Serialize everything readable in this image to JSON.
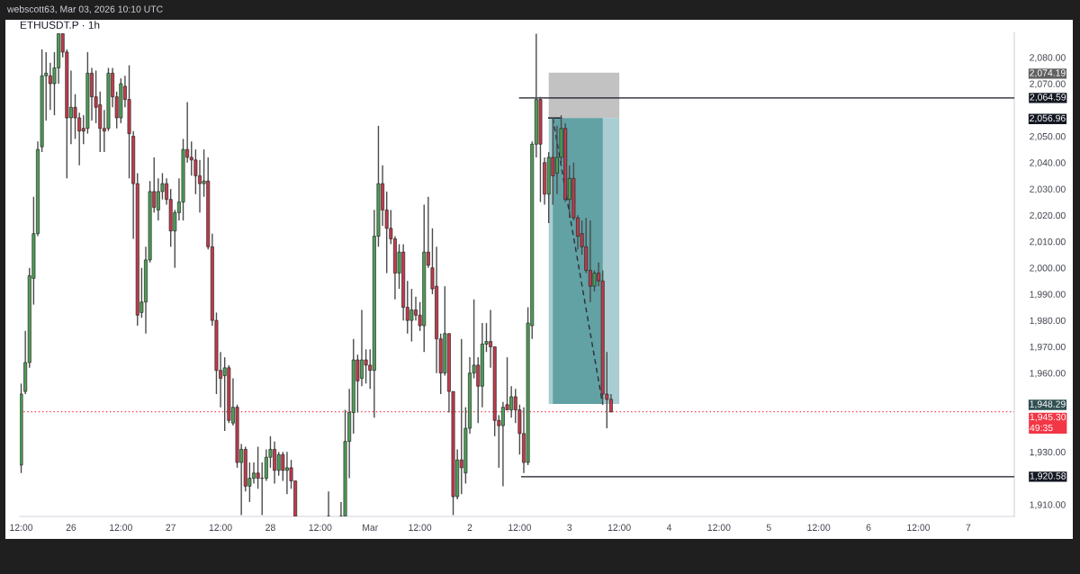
{
  "chart_data": {
    "type": "candlestick",
    "title": "ETHUSDT.P · 1h",
    "annotations": [
      "webscott63, Mar 03, 2026 10:10 UTC"
    ],
    "xlim": [
      "2026-02-25T11:40",
      "2026-03-07T11:05"
    ],
    "ylim": [
      1905.5,
      2089.5
    ],
    "xticks": [
      {
        "value": "2026-02-25T12:00",
        "label": "12:00"
      },
      {
        "value": "2026-02-26",
        "label": "26"
      },
      {
        "value": "2026-02-26T12:00",
        "label": "12:00"
      },
      {
        "value": "2026-02-27",
        "label": "27"
      },
      {
        "value": "2026-02-27T12:00",
        "label": "12:00"
      },
      {
        "value": "2026-02-28",
        "label": "28"
      },
      {
        "value": "2026-02-28T12:00",
        "label": "12:00"
      },
      {
        "value": "2026-03-01",
        "label": "Mar"
      },
      {
        "value": "2026-03-01T12:00",
        "label": "12:00"
      },
      {
        "value": "2026-03-02",
        "label": "2"
      },
      {
        "value": "2026-03-02T12:00",
        "label": "12:00"
      },
      {
        "value": "2026-03-03",
        "label": "3"
      },
      {
        "value": "2026-03-03T12:00",
        "label": "12:00"
      },
      {
        "value": "2026-03-04",
        "label": "4"
      },
      {
        "value": "2026-03-04T12:00",
        "label": "12:00"
      },
      {
        "value": "2026-03-05",
        "label": "5"
      },
      {
        "value": "2026-03-05T12:00",
        "label": "12:00"
      },
      {
        "value": "2026-03-06",
        "label": "6"
      },
      {
        "value": "2026-03-06T12:00",
        "label": "12:00"
      },
      {
        "value": "2026-03-07",
        "label": "7"
      }
    ],
    "yticks": [
      {
        "value": 2080,
        "label": "2,080.00"
      },
      {
        "value": 2074.19,
        "label": "2,074.19"
      },
      {
        "value": 2070,
        "label": "2,070.00"
      },
      {
        "value": 2056.96,
        "label": "2,056.96"
      },
      {
        "value": 2050,
        "label": "2,050.00"
      },
      {
        "value": 2040,
        "label": "2,040.00"
      },
      {
        "value": 2030,
        "label": "2,030.00"
      },
      {
        "value": 2020,
        "label": "2,020.00"
      },
      {
        "value": 2010,
        "label": "2,010.00"
      },
      {
        "value": 2000,
        "label": "2,000.00"
      },
      {
        "value": 1990,
        "label": "1,990.00"
      },
      {
        "value": 1980,
        "label": "1,980.00"
      },
      {
        "value": 1970,
        "label": "1,970.00"
      },
      {
        "value": 1960,
        "label": "1,960.00"
      },
      {
        "value": 1948.29,
        "label": "1,948.29"
      },
      {
        "value": 1930,
        "label": "1,930.00"
      },
      {
        "value": 1910,
        "label": "1,910.00"
      }
    ],
    "x": [
      "2026-02-25T12:00",
      "2026-02-25T13:00",
      "2026-02-25T14:00",
      "2026-02-25T15:00",
      "2026-02-25T16:00",
      "2026-02-25T17:00",
      "2026-02-25T18:00",
      "2026-02-25T19:00",
      "2026-02-25T20:00",
      "2026-02-25T21:00",
      "2026-02-25T22:00",
      "2026-02-25T23:00",
      "2026-02-26T00:00",
      "2026-02-26T01:00",
      "2026-02-26T02:00",
      "2026-02-26T03:00",
      "2026-02-26T04:00",
      "2026-02-26T05:00",
      "2026-02-26T06:00",
      "2026-02-26T07:00",
      "2026-02-26T08:00",
      "2026-02-26T09:00",
      "2026-02-26T10:00",
      "2026-02-26T11:00",
      "2026-02-26T12:00",
      "2026-02-26T13:00",
      "2026-02-26T14:00",
      "2026-02-26T15:00",
      "2026-02-26T16:00",
      "2026-02-26T17:00",
      "2026-02-26T18:00",
      "2026-02-26T19:00",
      "2026-02-26T20:00",
      "2026-02-26T21:00",
      "2026-02-26T22:00",
      "2026-02-26T23:00",
      "2026-02-27T00:00",
      "2026-02-27T01:00",
      "2026-02-27T02:00",
      "2026-02-27T03:00",
      "2026-02-27T04:00",
      "2026-02-27T05:00",
      "2026-02-27T06:00",
      "2026-02-27T07:00",
      "2026-02-27T08:00",
      "2026-02-27T09:00",
      "2026-02-27T10:00",
      "2026-02-27T11:00",
      "2026-02-27T12:00",
      "2026-02-27T13:00",
      "2026-02-27T14:00",
      "2026-02-27T15:00",
      "2026-02-27T16:00",
      "2026-02-27T17:00",
      "2026-02-27T18:00",
      "2026-02-27T19:00",
      "2026-02-27T20:00",
      "2026-02-27T21:00",
      "2026-02-27T22:00",
      "2026-02-27T23:00",
      "2026-02-28T00:00",
      "2026-02-28T01:00",
      "2026-02-28T02:00",
      "2026-02-28T03:00",
      "2026-02-28T04:00",
      "2026-02-28T05:00",
      "2026-02-28T06:00",
      "2026-02-28T14:00",
      "2026-02-28T17:00",
      "2026-02-28T18:00",
      "2026-02-28T19:00",
      "2026-02-28T20:00",
      "2026-02-28T21:00",
      "2026-02-28T22:00",
      "2026-02-28T23:00",
      "2026-03-01T00:00",
      "2026-03-01T01:00",
      "2026-03-01T02:00",
      "2026-03-01T03:00",
      "2026-03-01T04:00",
      "2026-03-01T05:00",
      "2026-03-01T06:00",
      "2026-03-01T07:00",
      "2026-03-01T08:00",
      "2026-03-01T09:00",
      "2026-03-01T10:00",
      "2026-03-01T11:00",
      "2026-03-01T12:00",
      "2026-03-01T13:00",
      "2026-03-01T14:00",
      "2026-03-01T15:00",
      "2026-03-01T16:00",
      "2026-03-01T17:00",
      "2026-03-01T18:00",
      "2026-03-01T19:00",
      "2026-03-01T20:00",
      "2026-03-01T21:00",
      "2026-03-01T22:00",
      "2026-03-01T23:00",
      "2026-03-02T00:00",
      "2026-03-02T01:00",
      "2026-03-02T02:00",
      "2026-03-02T03:00",
      "2026-03-02T04:00",
      "2026-03-02T05:00",
      "2026-03-02T06:00",
      "2026-03-02T07:00",
      "2026-03-02T08:00",
      "2026-03-02T09:00",
      "2026-03-02T10:00",
      "2026-03-02T11:00",
      "2026-03-02T12:00",
      "2026-03-02T13:00",
      "2026-03-02T14:00",
      "2026-03-02T15:00",
      "2026-03-02T16:00",
      "2026-03-02T17:00",
      "2026-03-02T18:00",
      "2026-03-02T19:00",
      "2026-03-02T20:00",
      "2026-03-02T21:00",
      "2026-03-02T22:00",
      "2026-03-02T23:00",
      "2026-03-03T00:00",
      "2026-03-03T01:00",
      "2026-03-03T02:00",
      "2026-03-03T03:00",
      "2026-03-03T04:00",
      "2026-03-03T05:00",
      "2026-03-03T06:00",
      "2026-03-03T07:00",
      "2026-03-03T08:00",
      "2026-03-03T09:00",
      "2026-03-03T10:00"
    ],
    "ohlc": [
      [
        1925,
        1956,
        1922,
        1952
      ],
      [
        1953,
        1976,
        1952,
        1964
      ],
      [
        1964,
        2000,
        1962,
        1997
      ],
      [
        1996,
        2027,
        1986,
        2013
      ],
      [
        2013,
        2048,
        2012,
        2045
      ],
      [
        2046,
        2083,
        2044,
        2073
      ],
      [
        2073,
        2082,
        2056,
        2074
      ],
      [
        2073,
        2078,
        2060,
        2070
      ],
      [
        2070,
        2082,
        2058,
        2076
      ],
      [
        2076,
        2089,
        2070,
        2089
      ],
      [
        2089,
        2089,
        2080,
        2082
      ],
      [
        2082,
        2083,
        2034,
        2057
      ],
      [
        2057,
        2075,
        2047,
        2061
      ],
      [
        2061,
        2066,
        2049,
        2057
      ],
      [
        2057,
        2059,
        2039,
        2052
      ],
      [
        2053,
        2058,
        2047,
        2052
      ],
      [
        2053,
        2082,
        2051,
        2074
      ],
      [
        2074,
        2076,
        2056,
        2065
      ],
      [
        2065,
        2075,
        2055,
        2061
      ],
      [
        2062,
        2067,
        2044,
        2053
      ],
      [
        2053,
        2060,
        2044,
        2052
      ],
      [
        2053,
        2076,
        2052,
        2074
      ],
      [
        2074,
        2076,
        2061,
        2065
      ],
      [
        2065,
        2067,
        2053,
        2057
      ],
      [
        2057,
        2072,
        2055,
        2070
      ],
      [
        2069,
        2073,
        2061,
        2064
      ],
      [
        2064,
        2077,
        2034,
        2051
      ],
      [
        2050,
        2052,
        2011,
        2032
      ],
      [
        2032,
        2036,
        1978,
        1982
      ],
      [
        1983,
        2000,
        1981,
        1987
      ],
      [
        1987,
        2008,
        1975,
        2003
      ],
      [
        2003,
        2033,
        2002,
        2029
      ],
      [
        2029,
        2042,
        2021,
        2023
      ],
      [
        2022,
        2034,
        2018,
        2029
      ],
      [
        2029,
        2036,
        2026,
        2032
      ],
      [
        2032,
        2034,
        2024,
        2026
      ],
      [
        2026,
        2030,
        2008,
        2014
      ],
      [
        2014,
        2022,
        2000,
        2021
      ],
      [
        2021,
        2034,
        2018,
        2025
      ],
      [
        2025,
        2049,
        2018,
        2045
      ],
      [
        2045,
        2063,
        2040,
        2042
      ],
      [
        2042,
        2048,
        2035,
        2041
      ],
      [
        2041,
        2045,
        2028,
        2035
      ],
      [
        2035,
        2041,
        2021,
        2032
      ],
      [
        2032,
        2045,
        2027,
        2033
      ],
      [
        2033,
        2042,
        2007,
        2008
      ],
      [
        2008,
        2013,
        1978,
        1980
      ],
      [
        1980,
        1983,
        1952,
        1961
      ],
      [
        1961,
        1968,
        1947,
        1958
      ],
      [
        1959,
        1966,
        1938,
        1962
      ],
      [
        1962,
        1963,
        1941,
        1942
      ],
      [
        1941,
        1958,
        1940,
        1947
      ],
      [
        1947,
        1948,
        1924,
        1926
      ],
      [
        1926,
        1933,
        1906,
        1931
      ],
      [
        1931,
        1932,
        1915,
        1917
      ],
      [
        1917,
        1926,
        1911,
        1920
      ],
      [
        1920,
        1926,
        1918,
        1922
      ],
      [
        1922,
        1932,
        1916,
        1920
      ],
      [
        1920,
        1926,
        1906,
        1920
      ],
      [
        1920,
        1931,
        1919,
        1928
      ],
      [
        1928,
        1936,
        1924,
        1931
      ],
      [
        1931,
        1934,
        1918,
        1923
      ],
      [
        1923,
        1930,
        1921,
        1929
      ],
      [
        1929,
        1930,
        1919,
        1923
      ],
      [
        1923,
        1930,
        1914,
        1924
      ],
      [
        1924,
        1927,
        1916,
        1919
      ],
      [
        1919,
        1919,
        1905.5,
        1905.5
      ],
      [
        1905.5,
        1915,
        1905.5,
        1905.5
      ],
      [
        1905.5,
        1911,
        1905.5,
        1905.5
      ],
      [
        1905.5,
        1946,
        1905.5,
        1934
      ],
      [
        1934,
        1954,
        1920,
        1945
      ],
      [
        1945,
        1973,
        1937,
        1965
      ],
      [
        1965,
        1967,
        1945,
        1957
      ],
      [
        1958,
        1984,
        1955,
        1965
      ],
      [
        1965,
        1969,
        1956,
        1963
      ],
      [
        1963,
        1969,
        1954,
        1961
      ],
      [
        1961,
        2022,
        1943,
        2012
      ],
      [
        2012,
        2054,
        2008,
        2032
      ],
      [
        2032,
        2039,
        2016,
        2022
      ],
      [
        2022,
        2029,
        1998,
        2015
      ],
      [
        2015,
        2022,
        2009,
        2011
      ],
      [
        2011,
        2012,
        1988,
        1998
      ],
      [
        1998,
        2009,
        1992,
        2006
      ],
      [
        2006,
        2009,
        1980,
        1985
      ],
      [
        1985,
        1995,
        1975,
        1980
      ],
      [
        1980,
        1992,
        1972,
        1984
      ],
      [
        1984,
        1989,
        1980,
        1982
      ],
      [
        1982,
        1987,
        1976,
        1978
      ],
      [
        1978,
        2024,
        1968,
        2006
      ],
      [
        2006,
        2027,
        2000,
        2001
      ],
      [
        2000,
        2015,
        1990,
        1992
      ],
      [
        1993,
        2008,
        1960,
        1973
      ],
      [
        1973,
        1975,
        1952,
        1960
      ],
      [
        1960,
        1993,
        1959,
        1975
      ],
      [
        1975,
        1975,
        1945,
        1953
      ],
      [
        1953,
        1953,
        1906,
        1913
      ],
      [
        1913,
        1931,
        1912,
        1927
      ],
      [
        1927,
        1973,
        1914,
        1924
      ],
      [
        1922,
        1947,
        1918,
        1939
      ],
      [
        1939,
        1966,
        1937,
        1960
      ],
      [
        1960,
        1988,
        1958,
        1963
      ],
      [
        1963,
        1966,
        1941,
        1955
      ],
      [
        1955,
        1979,
        1947,
        1971
      ],
      [
        1971,
        1979,
        1968,
        1972
      ],
      [
        1972,
        1984,
        1962,
        1970
      ],
      [
        1970,
        1970,
        1936,
        1942
      ],
      [
        1942,
        1944,
        1924,
        1940
      ],
      [
        1940,
        1949,
        1917,
        1947
      ],
      [
        1948,
        1966,
        1946,
        1946
      ],
      [
        1946,
        1955,
        1943,
        1951
      ],
      [
        1951,
        1954,
        1941,
        1946
      ],
      [
        1946,
        1948,
        1929,
        1937
      ],
      [
        1937,
        1947,
        1922,
        1926
      ],
      [
        1926,
        1985,
        1925,
        1979
      ],
      [
        1978,
        2048,
        1973,
        2047
      ],
      [
        2047,
        2089,
        2042,
        2064
      ],
      [
        2064,
        2065,
        2025,
        2047
      ],
      [
        2040,
        2042,
        2024,
        2028
      ],
      [
        2028,
        2044,
        2017,
        2042
      ],
      [
        2042,
        2057,
        2024,
        2035
      ],
      [
        2036,
        2054,
        2028,
        2042
      ],
      [
        2042,
        2058,
        2040,
        2053
      ],
      [
        2053,
        2055,
        2025,
        2026
      ],
      [
        2026,
        2039,
        2019,
        2034
      ],
      [
        2034,
        2040,
        2018,
        2019
      ],
      [
        2019,
        2020,
        2007,
        2012
      ],
      [
        2013,
        2018,
        2005,
        2008
      ],
      [
        2008,
        2019,
        1998,
        1999
      ],
      [
        1999,
        2018,
        1987,
        1993
      ],
      [
        1993,
        1999,
        1991,
        1998
      ],
      [
        1998,
        2002,
        1993,
        1995
      ],
      [
        1995,
        1999,
        1948,
        1952
      ],
      [
        1952,
        1968,
        1939,
        1950
      ],
      [
        1950,
        1952,
        1945,
        1945.3
      ]
    ],
    "series": [
      {
        "type": "line",
        "x": [
          "2026-03-02T19:00",
          "2026-03-03T12:00"
        ],
        "values": [
          null,
          null
        ],
        "lower": [
          2056.96,
          2056.96
        ],
        "upper": [
          2074.19,
          2074.19
        ],
        "color": "#c2c2c2"
      },
      {
        "type": "line",
        "x": [
          "2026-03-02T19:00",
          "2026-03-03T12:00"
        ],
        "values": [
          null,
          null
        ],
        "lower": [
          1948.29,
          1948.29
        ],
        "upper": [
          2056.96,
          2056.96
        ],
        "color": "#a9cdd0"
      },
      {
        "type": "line",
        "x": [
          "2026-03-02T20:00",
          "2026-03-03T08:00"
        ],
        "values": [
          null,
          null
        ],
        "lower": [
          1948.29,
          1948.29
        ],
        "upper": [
          2056.96,
          2056.96
        ],
        "color": "#62a1a4"
      },
      {
        "type": "line",
        "x": [
          "2026-03-02T19:00",
          "2026-03-02T22:00"
        ],
        "values": [
          2056.96,
          2056.96
        ],
        "color": "#131722"
      },
      {
        "type": "line",
        "x": [
          "2026-03-02T12:00",
          "2026-03-07T11:05"
        ],
        "values": [
          2064.59,
          2064.59
        ],
        "color": "#131722",
        "value_labels": [
          null,
          "2,064.59"
        ]
      },
      {
        "type": "line",
        "x": [
          "2026-03-02T12:30",
          "2026-03-07T11:05"
        ],
        "values": [
          1920.58,
          1920.58
        ],
        "color": "#131722",
        "value_labels": [
          null,
          "1,920.58"
        ]
      },
      {
        "type": "line",
        "x": [
          "2026-03-02T20:00",
          "2026-03-03T08:00"
        ],
        "values": [
          2057,
          1948
        ],
        "color": "#2a2e39",
        "line_style": "dashed"
      }
    ],
    "ref_lines": [
      {
        "axis": "y",
        "value": 1945.3,
        "label": "1,945.30\n49:35",
        "color": "#f23645",
        "line_style": "dotted"
      }
    ]
  }
}
